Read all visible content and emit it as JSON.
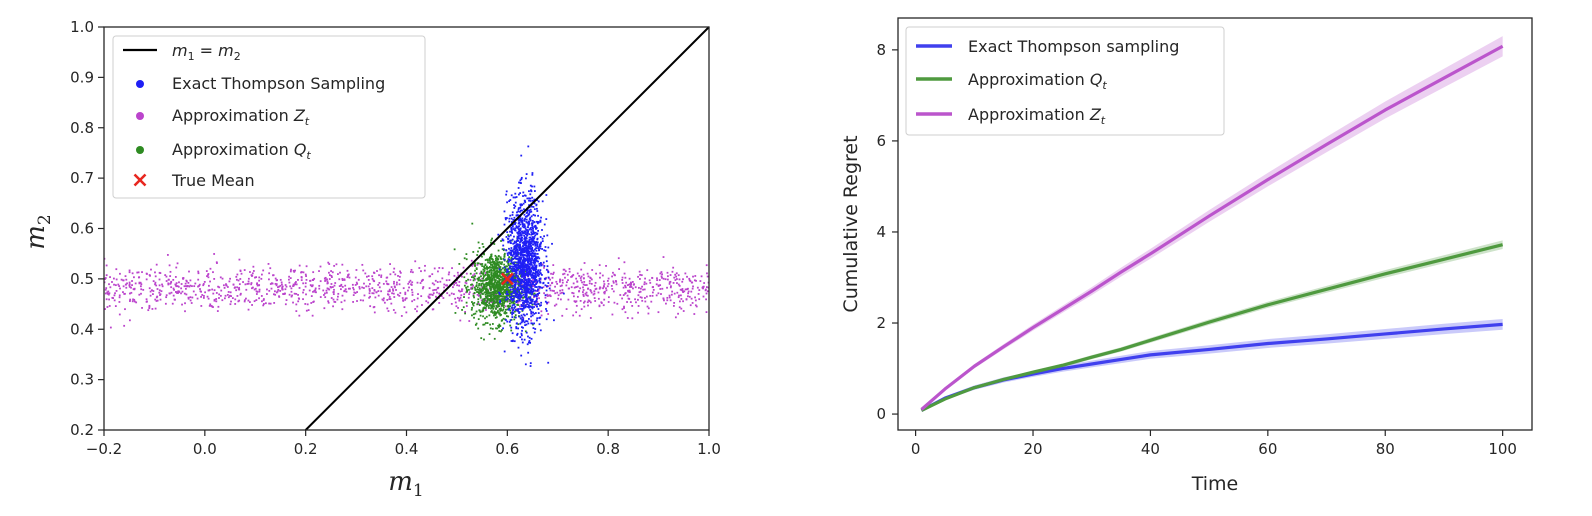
{
  "chart_data": [
    {
      "type": "scatter",
      "xlabel": "m1",
      "ylabel": "m2",
      "xlim": [
        -0.2,
        1.0
      ],
      "ylim": [
        0.2,
        1.0
      ],
      "xticks": [
        "−0.2",
        "0.0",
        "0.2",
        "0.4",
        "0.6",
        "0.8",
        "1.0"
      ],
      "yticks": [
        "0.2",
        "0.3",
        "0.4",
        "0.5",
        "0.6",
        "0.7",
        "0.8",
        "0.9",
        "1.0"
      ],
      "legend_position": "top-left",
      "reference_line": {
        "name": "m1 = m2",
        "points": [
          [
            0.2,
            0.2
          ],
          [
            1.0,
            1.0
          ]
        ],
        "color": "#000000"
      },
      "series": [
        {
          "name": "Exact Thompson Sampling",
          "color": "#1f1ff5",
          "center": [
            0.635,
            0.53
          ],
          "spread": [
            0.018,
            0.065
          ]
        },
        {
          "name": "Approximation Zt",
          "color": "#bb44cc",
          "center": [
            0.4,
            0.48
          ],
          "spread": [
            0.35,
            0.022
          ]
        },
        {
          "name": "Approximation Qt",
          "color": "#2e8b22",
          "center": [
            0.58,
            0.485
          ],
          "spread": [
            0.025,
            0.035
          ]
        }
      ],
      "true_mean": {
        "name": "True Mean",
        "x": 0.6,
        "y": 0.5,
        "color": "#e8261f"
      }
    },
    {
      "type": "line",
      "xlabel": "Time",
      "ylabel": "Cumulative Regret",
      "xlim": [
        -3,
        105
      ],
      "ylim": [
        -0.35,
        8.7
      ],
      "xticks": [
        "0",
        "20",
        "40",
        "60",
        "80",
        "100"
      ],
      "yticks": [
        "0",
        "2",
        "4",
        "6",
        "8"
      ],
      "legend_position": "top-left",
      "x": [
        1,
        5,
        10,
        15,
        20,
        25,
        30,
        35,
        40,
        50,
        60,
        70,
        80,
        90,
        100
      ],
      "series": [
        {
          "name": "Exact Thompson sampling",
          "color": "#4040ee",
          "values": [
            0.08,
            0.35,
            0.58,
            0.75,
            0.88,
            1.0,
            1.1,
            1.2,
            1.3,
            1.42,
            1.55,
            1.65,
            1.76,
            1.87,
            1.97
          ]
        },
        {
          "name": "Approximation Qt",
          "color": "#4f9a3f",
          "values": [
            0.08,
            0.33,
            0.58,
            0.76,
            0.92,
            1.07,
            1.25,
            1.42,
            1.62,
            2.02,
            2.4,
            2.74,
            3.08,
            3.4,
            3.72
          ]
        },
        {
          "name": "Approximation Zt",
          "color": "#bb55cc",
          "values": [
            0.1,
            0.55,
            1.05,
            1.48,
            1.9,
            2.3,
            2.7,
            3.12,
            3.52,
            4.35,
            5.15,
            5.92,
            6.68,
            7.38,
            8.08
          ]
        }
      ]
    }
  ]
}
